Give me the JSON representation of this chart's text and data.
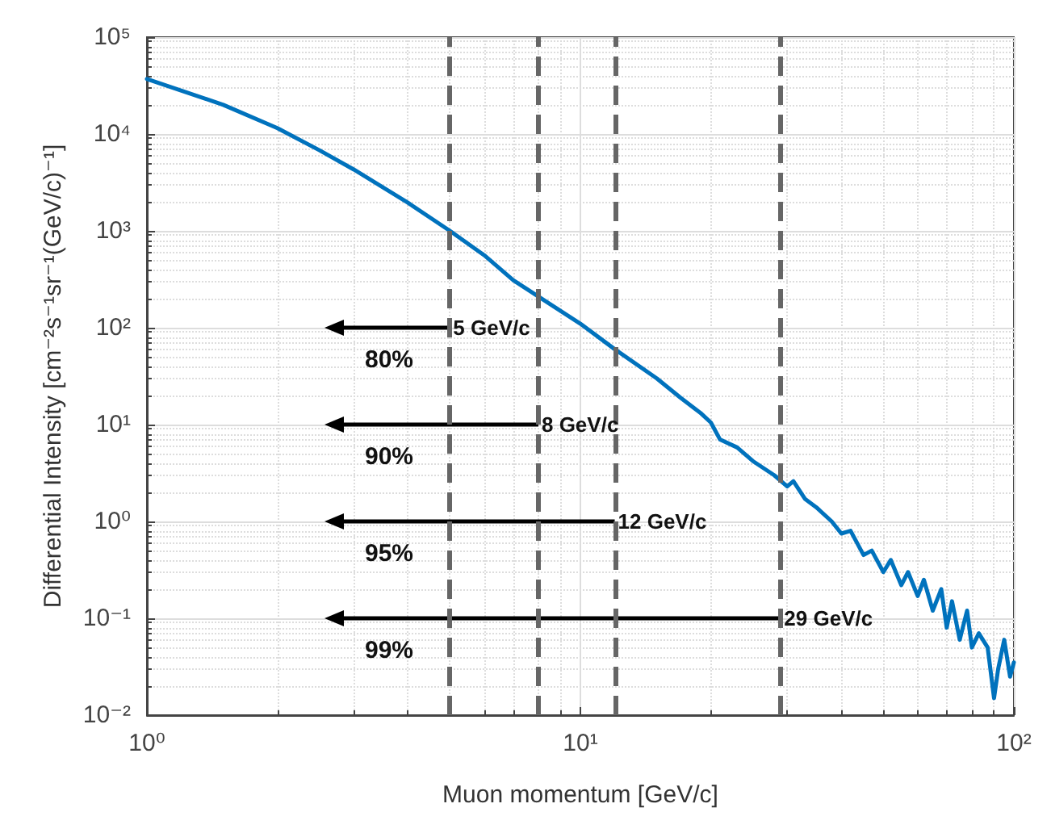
{
  "chart_data": {
    "type": "line",
    "xlabel": "Muon momentum [GeV/c]",
    "ylabel": "Differential Intensity [cm⁻²s⁻¹sr⁻¹(GeV/c)⁻¹]",
    "log": "xy",
    "grid": true,
    "line_style": "solid",
    "marker": "none",
    "xlim": [
      1,
      100
    ],
    "xticks": [
      {
        "value": 1,
        "label": "10⁰"
      },
      {
        "value": 10,
        "label": "10¹"
      },
      {
        "value": 100,
        "label": "10²"
      }
    ],
    "ylim": [
      0.01,
      100000
    ],
    "yticks": [
      {
        "value": 0.01,
        "label": "10⁻²"
      },
      {
        "value": 0.1,
        "label": "10⁻¹"
      },
      {
        "value": 1,
        "label": "10⁰"
      },
      {
        "value": 10,
        "label": "10¹"
      },
      {
        "value": 100,
        "label": "10²"
      },
      {
        "value": 1000,
        "label": "10³"
      },
      {
        "value": 10000,
        "label": "10⁴"
      },
      {
        "value": 100000,
        "label": "10⁵"
      }
    ],
    "x": [
      1,
      1.5,
      2,
      2.5,
      3,
      4,
      5,
      6,
      7,
      8,
      10,
      12,
      15,
      17,
      19,
      20,
      21,
      23,
      25,
      28,
      30,
      31,
      33,
      35,
      38,
      40,
      42,
      45,
      47,
      50,
      52,
      55,
      57,
      60,
      62,
      65,
      68,
      70,
      72,
      75,
      78,
      80,
      83,
      87,
      90,
      92,
      95,
      98,
      100
    ],
    "series": [
      {
        "color": "#0072bd",
        "values": [
          37000,
          20000,
          11500,
          6800,
          4300,
          1950,
          1000,
          560,
          310,
          210,
          110,
          60,
          30,
          19,
          13,
          10.5,
          7,
          5.8,
          4.2,
          3,
          2.3,
          2.6,
          1.7,
          1.4,
          1.0,
          0.75,
          0.8,
          0.45,
          0.5,
          0.3,
          0.4,
          0.22,
          0.3,
          0.17,
          0.25,
          0.12,
          0.2,
          0.08,
          0.15,
          0.06,
          0.12,
          0.05,
          0.07,
          0.05,
          0.015,
          0.03,
          0.06,
          0.025,
          0.035
        ]
      }
    ],
    "ref_lines": [
      {
        "axis": "x",
        "value": 5,
        "color": "#666666",
        "line_style": "dashed"
      },
      {
        "axis": "x",
        "value": 8,
        "color": "#666666",
        "line_style": "dashed"
      },
      {
        "axis": "x",
        "value": 12,
        "color": "#666666",
        "line_style": "dashed"
      },
      {
        "axis": "x",
        "value": 29,
        "color": "#666666",
        "line_style": "dashed"
      }
    ],
    "annotations": [
      {
        "text": "5 GeV/c",
        "x": 5,
        "y": 100
      },
      "80%",
      {
        "text": "8 GeV/c",
        "x": 8,
        "y": 10
      },
      "90%",
      {
        "text": "12 GeV/c",
        "x": 12,
        "y": 1
      },
      "95%",
      {
        "text": "29 GeV/c",
        "x": 29,
        "y": 0.1
      },
      "99%"
    ]
  }
}
